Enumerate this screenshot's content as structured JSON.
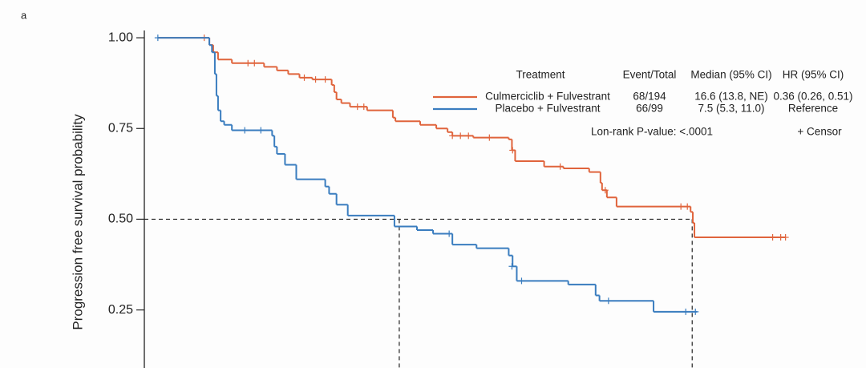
{
  "chart_data": {
    "type": "step",
    "panel_label": "a",
    "y_label": "Progression free survival probability",
    "xlim": [
      -0.42,
      22
    ],
    "ylim": [
      0.09,
      1.04
    ],
    "yticks": [
      {
        "value": 1,
        "label": "1.00"
      },
      {
        "value": 0.75,
        "label": "0.75"
      },
      {
        "value": 0.5,
        "label": "0.50"
      },
      {
        "value": 0.25,
        "label": "0.25"
      }
    ],
    "median_y": 0.5,
    "median_x": [
      7.5,
      16.6
    ],
    "series": [
      {
        "name": "Culmerciclib + Fulvestrant",
        "color": "#e0643c",
        "x": [
          0,
          1.6,
          1.72,
          1.87,
          2.3,
          3.3,
          3.7,
          4.05,
          4.4,
          4.8,
          5.4,
          5.48,
          5.55,
          5.7,
          5.97,
          6.5,
          7.3,
          7.38,
          8.15,
          8.65,
          9.0,
          9.15,
          9.8,
          10.9,
          11.0,
          11.1,
          12.0,
          12.6,
          13.4,
          13.75,
          13.8,
          13.95,
          14.25,
          16.55,
          16.62,
          16.67
        ],
        "values": [
          1,
          0.98,
          0.96,
          0.94,
          0.93,
          0.92,
          0.91,
          0.9,
          0.89,
          0.885,
          0.87,
          0.85,
          0.83,
          0.82,
          0.81,
          0.8,
          0.78,
          0.77,
          0.76,
          0.75,
          0.74,
          0.73,
          0.725,
          0.72,
          0.69,
          0.66,
          0.645,
          0.64,
          0.63,
          0.6,
          0.58,
          0.56,
          0.535,
          0.52,
          0.49,
          0.45
        ],
        "x_end": 19.5,
        "censor_x": [
          1.44,
          2.8,
          3.0,
          4.55,
          4.9,
          5.2,
          6.2,
          6.4,
          9.15,
          9.4,
          9.65,
          10.3,
          11.02,
          12.5,
          13.9,
          16.25,
          16.45,
          19.1,
          19.35,
          19.5
        ],
        "censor_values": [
          1,
          0.93,
          0.93,
          0.89,
          0.885,
          0.885,
          0.81,
          0.81,
          0.73,
          0.73,
          0.73,
          0.725,
          0.69,
          0.645,
          0.58,
          0.535,
          0.535,
          0.45,
          0.45,
          0.45
        ]
      },
      {
        "name": "Placebo + Fulvestrant",
        "color": "#3a7dbf",
        "x": [
          0,
          1.6,
          1.68,
          1.77,
          1.82,
          1.87,
          1.95,
          2.06,
          2.3,
          3.55,
          3.62,
          3.7,
          3.95,
          4.3,
          5.2,
          5.32,
          5.55,
          5.9,
          7.35,
          8.05,
          8.55,
          9.15,
          9.9,
          10.9,
          11.02,
          11.15,
          12.75,
          13.6,
          13.72,
          15.4
        ],
        "values": [
          1,
          0.98,
          0.96,
          0.9,
          0.84,
          0.8,
          0.77,
          0.76,
          0.745,
          0.73,
          0.7,
          0.68,
          0.65,
          0.61,
          0.59,
          0.57,
          0.54,
          0.51,
          0.48,
          0.47,
          0.46,
          0.43,
          0.42,
          0.4,
          0.37,
          0.33,
          0.32,
          0.29,
          0.275,
          0.245
        ],
        "x_end": 16.75,
        "censor_x": [
          0,
          2.7,
          3.2,
          9.05,
          11.0,
          11.3,
          14.0,
          16.4,
          16.7
        ],
        "censor_values": [
          1,
          0.745,
          0.745,
          0.46,
          0.37,
          0.33,
          0.275,
          0.245,
          0.245
        ]
      }
    ],
    "table": {
      "headers": [
        "Treatment",
        "Event/Total",
        "Median (95% CI)",
        "HR (95% CI)"
      ],
      "rows": [
        [
          "68/194",
          "16.6 (13.8, NE)",
          "0.36 (0.26, 0.51)"
        ],
        [
          "66/99",
          "7.5 (5.3, 11.0)",
          "Reference"
        ]
      ]
    },
    "p_value_text": "Lon-rank P-value: <.0001",
    "censor_legend": "+ Censor"
  }
}
